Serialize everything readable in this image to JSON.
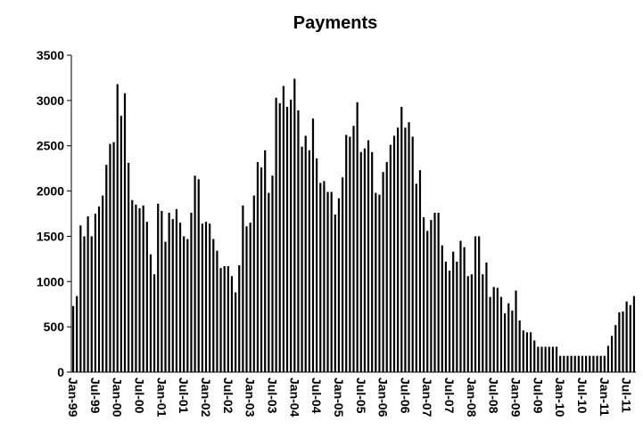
{
  "chart_data": {
    "type": "bar",
    "title": "Payments",
    "color": "#000000",
    "grid": false,
    "categories": [
      "Jan-99",
      null,
      null,
      null,
      null,
      null,
      "Jul-99",
      null,
      null,
      null,
      null,
      null,
      "Jan-00",
      null,
      null,
      null,
      null,
      null,
      "Jul-00",
      null,
      null,
      null,
      null,
      null,
      "Jan-01",
      null,
      null,
      null,
      null,
      null,
      "Jul-01",
      null,
      null,
      null,
      null,
      null,
      "Jan-02",
      null,
      null,
      null,
      null,
      null,
      "Jul-02",
      null,
      null,
      null,
      null,
      null,
      "Jan-03",
      null,
      null,
      null,
      null,
      null,
      "Jul-03",
      null,
      null,
      null,
      null,
      null,
      "Jan-04",
      null,
      null,
      null,
      null,
      null,
      "Jul-04",
      null,
      null,
      null,
      null,
      null,
      "Jan-05",
      null,
      null,
      null,
      null,
      null,
      "Jul-05",
      null,
      null,
      null,
      null,
      null,
      "Jan-06",
      null,
      null,
      null,
      null,
      null,
      "Jul-06",
      null,
      null,
      null,
      null,
      null,
      "Jan-07",
      null,
      null,
      null,
      null,
      null,
      "Jul-07",
      null,
      null,
      null,
      null,
      null,
      "Jan-08",
      null,
      null,
      null,
      null,
      null,
      "Jul-08",
      null,
      null,
      null,
      null,
      null,
      "Jan-09",
      null,
      null,
      null,
      null,
      null,
      "Jul-09",
      null,
      null,
      null,
      null,
      null,
      "Jan-10",
      null,
      null,
      null,
      null,
      null,
      "Jul-10",
      null,
      null,
      null,
      null,
      null,
      "Jan-11",
      null,
      null,
      null,
      null,
      null,
      "Jul-11",
      null,
      null
    ],
    "values": [
      730,
      840,
      1620,
      1500,
      1720,
      1500,
      1750,
      1830,
      1950,
      2290,
      2520,
      2540,
      3180,
      2830,
      3080,
      2310,
      1900,
      1850,
      1810,
      1840,
      1660,
      1300,
      1080,
      1860,
      1780,
      1440,
      1760,
      1690,
      1800,
      1650,
      1500,
      1470,
      1760,
      2170,
      2130,
      1640,
      1660,
      1640,
      1470,
      1340,
      1150,
      1170,
      1170,
      1060,
      880,
      1180,
      1840,
      1610,
      1650,
      1950,
      2320,
      2260,
      2450,
      1980,
      2170,
      3030,
      2970,
      3160,
      2930,
      3010,
      3240,
      2890,
      2490,
      2610,
      2450,
      2800,
      2360,
      2090,
      2110,
      1990,
      1990,
      1740,
      1920,
      2150,
      2620,
      2600,
      2720,
      2980,
      2430,
      2470,
      2560,
      2430,
      1980,
      1960,
      2210,
      2320,
      2510,
      2610,
      2700,
      2930,
      2700,
      2760,
      2600,
      2080,
      2230,
      1710,
      1560,
      1680,
      1760,
      1760,
      1400,
      1220,
      1120,
      1330,
      1220,
      1450,
      1380,
      1060,
      1080,
      1500,
      1500,
      1080,
      1210,
      830,
      940,
      930,
      830,
      650,
      760,
      680,
      900,
      570,
      460,
      440,
      440,
      350,
      280,
      280,
      280,
      280,
      280,
      280,
      180,
      180,
      180,
      180,
      180,
      180,
      180,
      180,
      180,
      180,
      180,
      180,
      180,
      290,
      400,
      520,
      660,
      670,
      780,
      740,
      840
    ],
    "ylim": [
      0,
      3500
    ],
    "yticks": [
      0,
      500,
      1000,
      1500,
      2000,
      2500,
      3000,
      3500
    ]
  }
}
